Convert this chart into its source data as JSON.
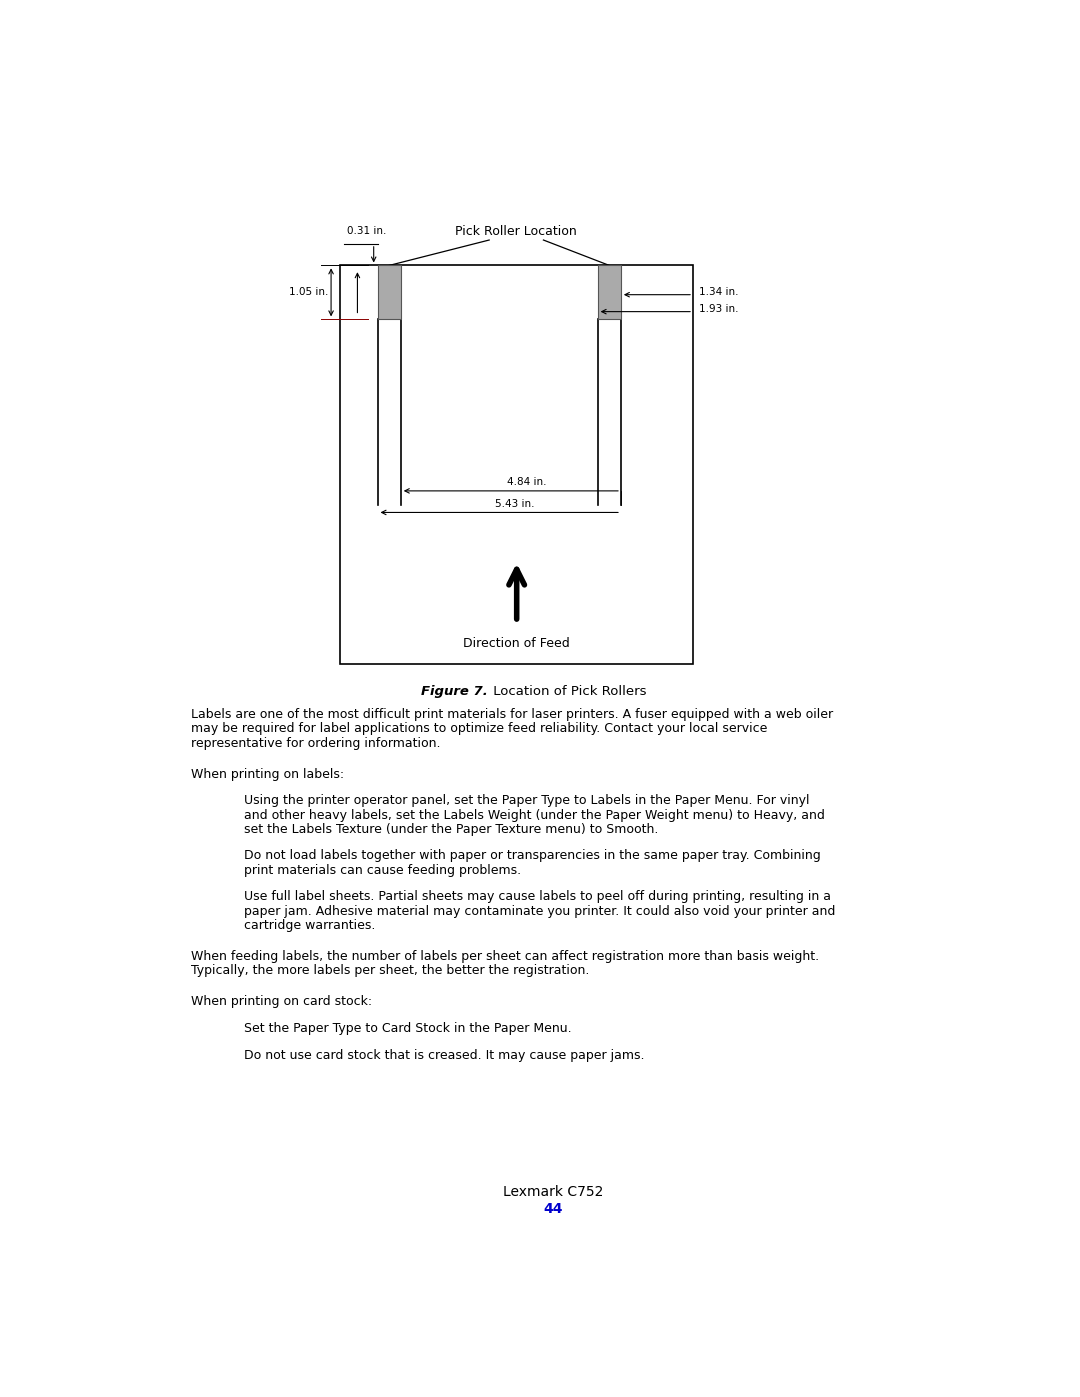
{
  "bg_color": "#ffffff",
  "page_width": 10.8,
  "page_height": 13.97,
  "diagram": {
    "title": "Pick Roller Location",
    "figure_caption_bold": "Figure 7.",
    "figure_caption_normal": " Location of Pick Rollers",
    "direction_label": "Direction of Feed",
    "dim_031": "0.31 in.",
    "dim_105": "1.05 in.",
    "dim_134": "1.34 in.",
    "dim_193": "1.93 in.",
    "dim_484": "4.84 in.",
    "dim_543": "5.43 in."
  },
  "text_blocks": [
    {
      "indent": 0,
      "text": "Labels are one of the most difficult print materials for laser printers. A fuser equipped with a web oiler\nmay be required for label applications to optimize feed reliability. Contact your local service\nrepresentative for ordering information."
    },
    {
      "indent": 0,
      "text": "When printing on labels:"
    },
    {
      "indent": 1,
      "text": "Using the printer operator panel, set the Paper Type to Labels in the Paper Menu. For vinyl\nand other heavy labels, set the Labels Weight (under the Paper Weight menu) to Heavy, and\nset the Labels Texture (under the Paper Texture menu) to Smooth."
    },
    {
      "indent": 1,
      "text": "Do not load labels together with paper or transparencies in the same paper tray. Combining\nprint materials can cause feeding problems."
    },
    {
      "indent": 1,
      "text": "Use full label sheets. Partial sheets may cause labels to peel off during printing, resulting in a\npaper jam. Adhesive material may contaminate you printer. It could also void your printer and\ncartridge warranties."
    },
    {
      "indent": 0,
      "text": "When feeding labels, the number of labels per sheet can affect registration more than basis weight.\nTypically, the more labels per sheet, the better the registration."
    },
    {
      "indent": 0,
      "text": "When printing on card stock:"
    },
    {
      "indent": 1,
      "text": "Set the Paper Type to Card Stock in the Paper Menu."
    },
    {
      "indent": 1,
      "text": "Do not use card stock that is creased. It may cause paper jams."
    }
  ],
  "footer_line1": "Lexmark C752",
  "footer_line2": "44",
  "footer_line2_color": "#0000cc"
}
